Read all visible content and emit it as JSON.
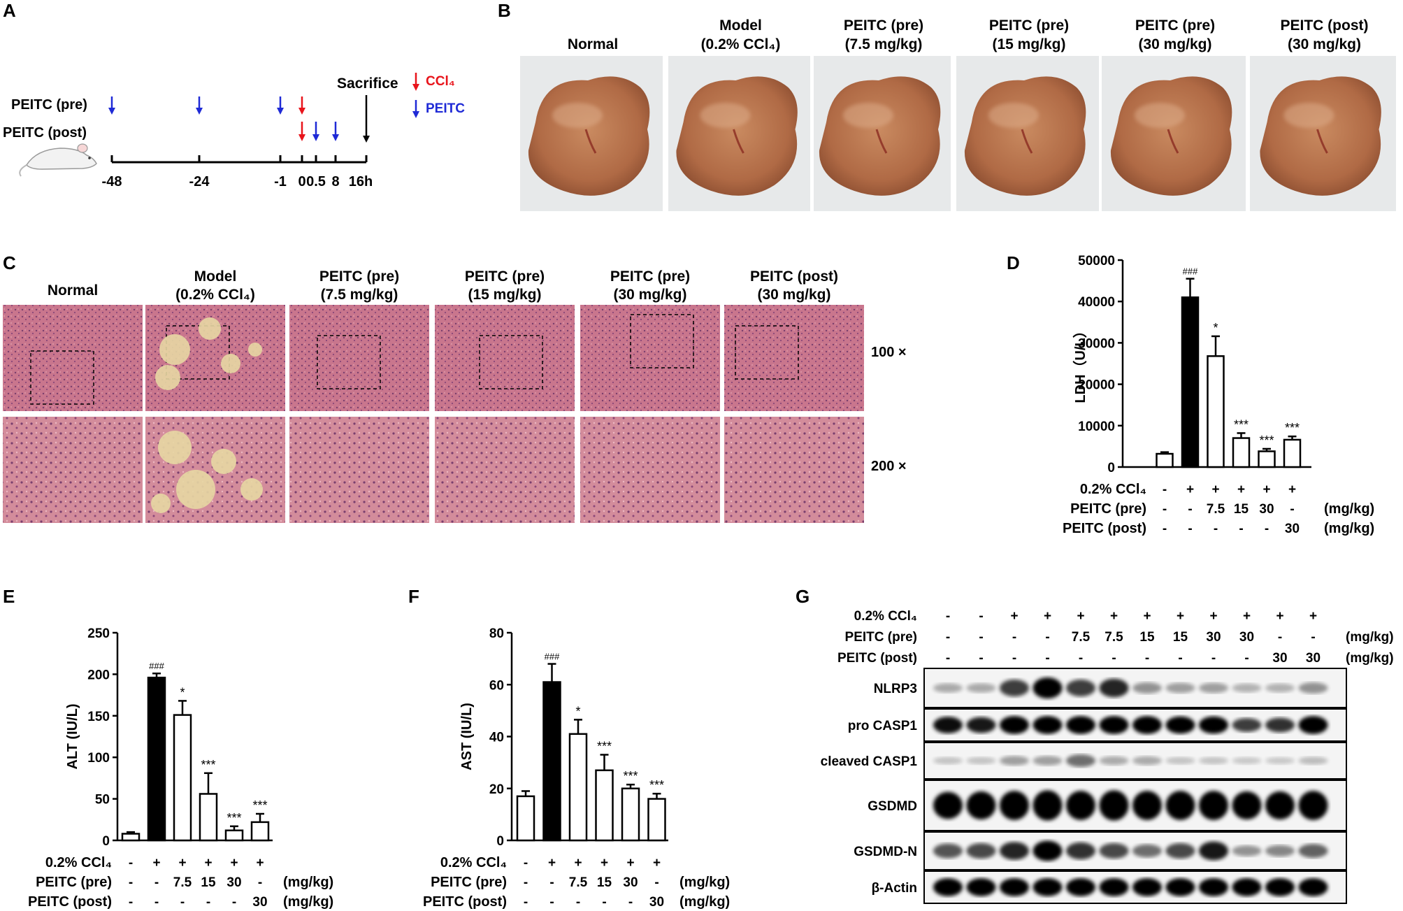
{
  "panels": {
    "A": {
      "letter": "A",
      "row_labels": [
        "PEITC (pre)",
        "PEITC (post)"
      ],
      "sacrifice_label": "Sacrifice",
      "legend": [
        {
          "label": "CCl₄",
          "color": "#e8141b"
        },
        {
          "label": "PEITC",
          "color": "#1f2ad6"
        }
      ],
      "timeline_ticks": [
        "-48",
        "-24",
        "-1",
        "0",
        "0.5",
        "8",
        "16h"
      ],
      "arrow_colors": {
        "ccl4": "#e8141b",
        "peitc": "#1f2ad6",
        "sacrifice": "#000000"
      }
    },
    "B": {
      "letter": "B",
      "groups": [
        {
          "line1": "Normal",
          "line2": ""
        },
        {
          "line1": "Model",
          "line2": "(0.2% CCl₄)"
        },
        {
          "line1": "PEITC (pre)",
          "line2": "(7.5 mg/kg)"
        },
        {
          "line1": "PEITC (pre)",
          "line2": "(15 mg/kg)"
        },
        {
          "line1": "PEITC (pre)",
          "line2": "(30 mg/kg)"
        },
        {
          "line1": "PEITC (post)",
          "line2": "(30 mg/kg)"
        }
      ]
    },
    "C": {
      "letter": "C",
      "groups": [
        {
          "line1": "Normal",
          "line2": ""
        },
        {
          "line1": "Model",
          "line2": "(0.2% CCl₄)"
        },
        {
          "line1": "PEITC (pre)",
          "line2": "(7.5 mg/kg)"
        },
        {
          "line1": "PEITC (pre)",
          "line2": "(15 mg/kg)"
        },
        {
          "line1": "PEITC (pre)",
          "line2": "(30 mg/kg)"
        },
        {
          "line1": "PEITC (post)",
          "line2": "(30 mg/kg)"
        }
      ],
      "magnifications": [
        "100 ×",
        "200 ×"
      ]
    },
    "G": {
      "letter": "G",
      "treatment_rows": [
        {
          "label": "0.2% CCl₄",
          "values": [
            "-",
            "-",
            "+",
            "+",
            "+",
            "+",
            "+",
            "+",
            "+",
            "+",
            "+",
            "+"
          ],
          "unit": ""
        },
        {
          "label": "PEITC (pre)",
          "values": [
            "-",
            "-",
            "-",
            "-",
            "7.5",
            "7.5",
            "15",
            "15",
            "30",
            "30",
            "-",
            "-"
          ],
          "unit": "(mg/kg)"
        },
        {
          "label": "PEITC (post)",
          "values": [
            "-",
            "-",
            "-",
            "-",
            "-",
            "-",
            "-",
            "-",
            "-",
            "-",
            "30",
            "30"
          ],
          "unit": "(mg/kg)"
        }
      ],
      "blots": [
        {
          "label": "NLRP3",
          "intensities": [
            0.15,
            0.15,
            0.6,
            0.85,
            0.6,
            0.7,
            0.25,
            0.2,
            0.2,
            0.12,
            0.12,
            0.25
          ]
        },
        {
          "label": "pro CASP1",
          "intensities": [
            0.8,
            0.75,
            0.9,
            0.9,
            0.9,
            0.9,
            0.9,
            0.85,
            0.85,
            0.6,
            0.65,
            0.9
          ]
        },
        {
          "label": "cleaved CASP1",
          "intensities": [
            0.05,
            0.05,
            0.2,
            0.2,
            0.4,
            0.15,
            0.15,
            0.05,
            0.05,
            0.03,
            0.03,
            0.08
          ]
        },
        {
          "label": "GSDMD",
          "intensities": [
            0.85,
            0.9,
            0.95,
            1,
            0.95,
            1,
            0.95,
            0.95,
            0.95,
            0.9,
            0.9,
            0.95
          ]
        },
        {
          "label": "GSDMD-N",
          "intensities": [
            0.5,
            0.55,
            0.7,
            0.85,
            0.65,
            0.55,
            0.4,
            0.55,
            0.75,
            0.25,
            0.3,
            0.45
          ]
        },
        {
          "label": "β-Actin",
          "intensities": [
            0.9,
            0.9,
            0.9,
            0.9,
            0.9,
            0.9,
            0.9,
            0.9,
            0.9,
            0.9,
            0.9,
            0.9
          ]
        }
      ]
    }
  },
  "chart_data": [
    {
      "panel": "D",
      "type": "bar",
      "ylabel": "LDH（U/L）",
      "ylim": [
        0,
        50000
      ],
      "yticks": [
        0,
        10000,
        20000,
        30000,
        40000,
        50000
      ],
      "values": [
        3200,
        41000,
        26800,
        7000,
        3800,
        6600
      ],
      "errors": [
        400,
        4500,
        4800,
        1200,
        600,
        800
      ],
      "fills": [
        "white",
        "black",
        "white",
        "white",
        "white",
        "white"
      ],
      "annotations": [
        "",
        "###",
        "*",
        "***",
        "***",
        "***"
      ],
      "treatments": [
        {
          "label": "0.2% CCl₄",
          "values": [
            "-",
            "+",
            "+",
            "+",
            "+",
            "+"
          ],
          "unit": ""
        },
        {
          "label": "PEITC (pre)",
          "values": [
            "-",
            "-",
            "7.5",
            "15",
            "30",
            "-"
          ],
          "unit": "(mg/kg)"
        },
        {
          "label": "PEITC (post)",
          "values": [
            "-",
            "-",
            "-",
            "-",
            "-",
            "30"
          ],
          "unit": "(mg/kg)"
        }
      ]
    },
    {
      "panel": "E",
      "type": "bar",
      "ylabel": "ALT (IU/L)",
      "ylim": [
        0,
        250
      ],
      "yticks": [
        0,
        50,
        100,
        150,
        200,
        250
      ],
      "values": [
        8,
        196,
        151,
        56,
        12,
        22
      ],
      "errors": [
        2,
        5,
        17,
        25,
        5,
        10
      ],
      "fills": [
        "white",
        "black",
        "white",
        "white",
        "white",
        "white"
      ],
      "annotations": [
        "",
        "###",
        "*",
        "***",
        "***",
        "***"
      ],
      "treatments": [
        {
          "label": "0.2% CCl₄",
          "values": [
            "-",
            "+",
            "+",
            "+",
            "+",
            "+"
          ],
          "unit": ""
        },
        {
          "label": "PEITC (pre)",
          "values": [
            "-",
            "-",
            "7.5",
            "15",
            "30",
            "-"
          ],
          "unit": "(mg/kg)"
        },
        {
          "label": "PEITC (post)",
          "values": [
            "-",
            "-",
            "-",
            "-",
            "-",
            "30"
          ],
          "unit": "(mg/kg)"
        }
      ]
    },
    {
      "panel": "F",
      "type": "bar",
      "ylabel": "AST (IU/L)",
      "ylim": [
        0,
        80
      ],
      "yticks": [
        0,
        20,
        40,
        60,
        80
      ],
      "values": [
        17,
        61,
        41,
        27,
        20,
        16
      ],
      "errors": [
        2,
        7,
        5.5,
        6,
        1.5,
        2
      ],
      "fills": [
        "white",
        "black",
        "white",
        "white",
        "white",
        "white"
      ],
      "annotations": [
        "",
        "###",
        "*",
        "***",
        "***",
        "***"
      ],
      "treatments": [
        {
          "label": "0.2% CCl₄",
          "values": [
            "-",
            "+",
            "+",
            "+",
            "+",
            "+"
          ],
          "unit": ""
        },
        {
          "label": "PEITC (pre)",
          "values": [
            "-",
            "-",
            "7.5",
            "15",
            "30",
            "-"
          ],
          "unit": "(mg/kg)"
        },
        {
          "label": "PEITC (post)",
          "values": [
            "-",
            "-",
            "-",
            "-",
            "-",
            "30"
          ],
          "unit": "(mg/kg)"
        }
      ]
    }
  ]
}
